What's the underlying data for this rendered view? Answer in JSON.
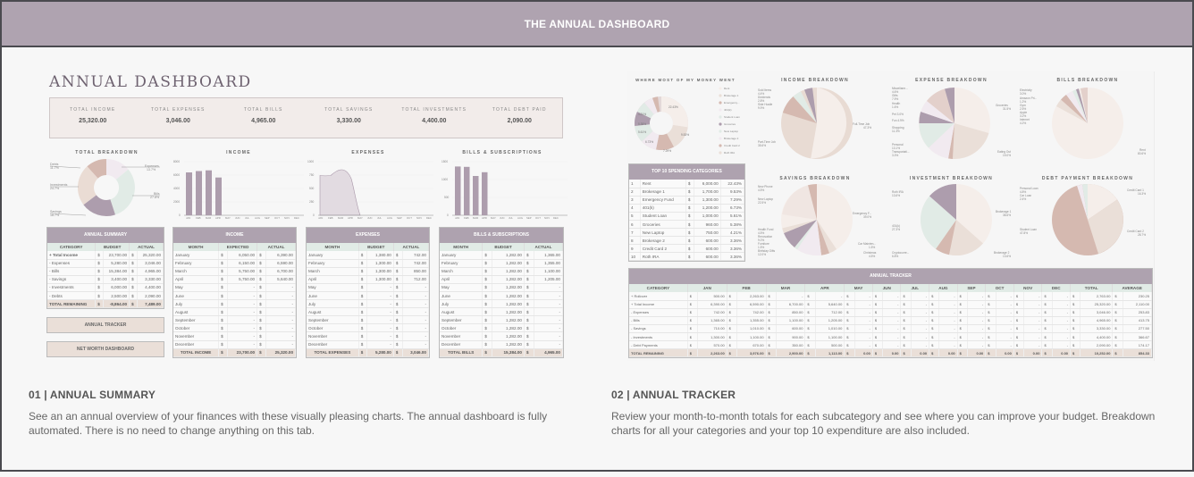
{
  "banner": {
    "title": "THE ANNUAL DASHBOARD"
  },
  "left": {
    "title": "ANNUAL DASHBOARD",
    "kpis": [
      {
        "label": "TOTAL INCOME",
        "value": "25,320.00"
      },
      {
        "label": "TOTAL EXPENSES",
        "value": "3,046.00"
      },
      {
        "label": "TOTAL BILLS",
        "value": "4,965.00"
      },
      {
        "label": "TOTAL SAVINGS",
        "value": "3,330.00"
      },
      {
        "label": "TOTAL INVESTMENTS",
        "value": "4,400.00"
      },
      {
        "label": "TOTAL DEBT PAID",
        "value": "2,090.00"
      }
    ],
    "chart_titles": {
      "breakdown": "TOTAL BREAKDOWN",
      "income": "INCOME",
      "expenses": "EXPENSES",
      "bills": "BILLS & SUBSCRIPTIONS"
    },
    "summary": {
      "title": "ANNUAL SUMMARY",
      "headers": [
        "CATEGORY",
        "BUDGET",
        "ACTUAL"
      ],
      "rows": [
        [
          "+",
          "Total Income",
          "$",
          "23,700.00",
          "$",
          "25,320.00"
        ],
        [
          "-",
          "Expenses",
          "$",
          "5,280.00",
          "$",
          "3,046.00"
        ],
        [
          "-",
          "Bills",
          "$",
          "15,384.00",
          "$",
          "4,965.00"
        ],
        [
          "-",
          "Savings",
          "$",
          "3,400.00",
          "$",
          "3,330.00"
        ],
        [
          "-",
          "Investments",
          "$",
          "6,000.00",
          "$",
          "4,400.00"
        ],
        [
          "-",
          "Debts",
          "$",
          "2,500.00",
          "$",
          "2,090.00"
        ]
      ],
      "total": [
        "TOTAL REMAINING",
        "$",
        "-8,864.00",
        "$",
        "7,489.00"
      ]
    },
    "buttons": {
      "tracker": "ANNUAL TRACKER",
      "networth": "NET WORTH DASHBOARD"
    },
    "income_table": {
      "title": "INCOME",
      "headers": [
        "MONTH",
        "EXPECTED",
        "ACTUAL"
      ],
      "rows": [
        [
          "January",
          "6,050.00",
          "6,390.00"
        ],
        [
          "February",
          "6,150.00",
          "6,590.00"
        ],
        [
          "March",
          "5,750.00",
          "6,700.00"
        ],
        [
          "April",
          "5,750.00",
          "5,640.00"
        ],
        [
          "May",
          "-",
          "-"
        ],
        [
          "June",
          "-",
          "-"
        ],
        [
          "July",
          "-",
          "-"
        ],
        [
          "August",
          "-",
          "-"
        ],
        [
          "September",
          "-",
          "-"
        ],
        [
          "October",
          "-",
          "-"
        ],
        [
          "November",
          "-",
          "-"
        ],
        [
          "December",
          "-",
          "-"
        ]
      ],
      "total": [
        "TOTAL INCOME",
        "23,700.00",
        "25,320.00"
      ]
    },
    "expenses_table": {
      "title": "EXPENSES",
      "headers": [
        "MONTH",
        "BUDGET",
        "ACTUAL"
      ],
      "rows": [
        [
          "January",
          "1,380.00",
          "742.00"
        ],
        [
          "February",
          "1,300.00",
          "742.00"
        ],
        [
          "March",
          "1,300.00",
          "850.00"
        ],
        [
          "April",
          "1,300.00",
          "712.00"
        ],
        [
          "May",
          "-",
          "-"
        ],
        [
          "June",
          "-",
          "-"
        ],
        [
          "July",
          "-",
          "-"
        ],
        [
          "August",
          "-",
          "-"
        ],
        [
          "September",
          "-",
          "-"
        ],
        [
          "October",
          "-",
          "-"
        ],
        [
          "November",
          "-",
          "-"
        ],
        [
          "December",
          "-",
          "-"
        ]
      ],
      "total": [
        "TOTAL EXPENSES",
        "5,280.00",
        "3,046.00"
      ]
    },
    "bills_table": {
      "title": "BILLS & SUBSCRIPTIONS",
      "headers": [
        "MONTH",
        "BUDGET",
        "ACTUAL"
      ],
      "rows": [
        [
          "January",
          "1,282.00",
          "1,365.00"
        ],
        [
          "February",
          "1,282.00",
          "1,355.00"
        ],
        [
          "March",
          "1,282.00",
          "1,100.00"
        ],
        [
          "April",
          "1,282.00",
          "1,205.00"
        ],
        [
          "May",
          "1,282.00",
          "-"
        ],
        [
          "June",
          "1,282.00",
          "-"
        ],
        [
          "July",
          "1,282.00",
          "-"
        ],
        [
          "August",
          "1,282.00",
          "-"
        ],
        [
          "September",
          "1,282.00",
          "-"
        ],
        [
          "October",
          "1,282.00",
          "-"
        ],
        [
          "November",
          "1,282.00",
          "-"
        ],
        [
          "December",
          "1,282.00",
          "-"
        ]
      ],
      "total": [
        "TOTAL BILLS",
        "15,384.00",
        "4,965.00"
      ]
    }
  },
  "right": {
    "chart_titles": {
      "money": "WHERE MOST OF MY MONEY WENT",
      "income": "INCOME BREAKDOWN",
      "expense": "EXPENSE BREAKDOWN",
      "bills": "BILLS BREAKDOWN",
      "savings": "SAVINGS BREAKDOWN",
      "investment": "INVESTMENT BREAKDOWN",
      "debt": "DEBT PAYMENT BREAKDOWN"
    },
    "top10": {
      "title": "TOP 10 SPENDING CATEGORIES",
      "rows": [
        [
          "1",
          "Rent",
          "6,000.00",
          "22.43%"
        ],
        [
          "2",
          "Brokerage 1",
          "1,700.00",
          "9.53%"
        ],
        [
          "3",
          "Emergency Fund",
          "1,300.00",
          "7.29%"
        ],
        [
          "4",
          "401(k)",
          "1,200.00",
          "6.73%"
        ],
        [
          "5",
          "Student Loan",
          "1,000.00",
          "5.61%"
        ],
        [
          "6",
          "Groceries",
          "960.00",
          "5.38%"
        ],
        [
          "7",
          "New Laptop",
          "750.00",
          "4.21%"
        ],
        [
          "8",
          "Brokerage 2",
          "600.00",
          "3.36%"
        ],
        [
          "9",
          "Credit Card 2",
          "600.00",
          "3.36%"
        ],
        [
          "10",
          "Roth IRA",
          "600.00",
          "3.36%"
        ]
      ]
    },
    "tracker": {
      "title": "ANNUAL TRACKER",
      "headers": [
        "CATEGORY",
        "JAN",
        "FEB",
        "MAR",
        "APR",
        "MAY",
        "JUN",
        "JUL",
        "AUG",
        "SEP",
        "OCT",
        "NOV",
        "DEC",
        "TOTAL",
        "AVERAGE"
      ],
      "rows": [
        [
          "+ Rollover",
          "500.00",
          "2,263.00",
          "-",
          "-",
          "-",
          "-",
          "-",
          "-",
          "-",
          "-",
          "-",
          "-",
          "2,763.00",
          "230.25"
        ],
        [
          "+ Total Income",
          "6,390.00",
          "6,590.00",
          "6,700.00",
          "5,640.00",
          "-",
          "-",
          "-",
          "-",
          "-",
          "-",
          "-",
          "-",
          "25,320.00",
          "2,110.00"
        ],
        [
          "- Expenses",
          "742.00",
          "742.00",
          "850.00",
          "712.00",
          "-",
          "-",
          "-",
          "-",
          "-",
          "-",
          "-",
          "-",
          "3,046.00",
          "253.83"
        ],
        [
          "- Bills",
          "1,365.00",
          "1,355.00",
          "1,100.00",
          "1,205.00",
          "-",
          "-",
          "-",
          "-",
          "-",
          "-",
          "-",
          "-",
          "4,965.00",
          "413.75"
        ],
        [
          "- Savings",
          "710.00",
          "1,010.00",
          "600.00",
          "1,010.00",
          "-",
          "-",
          "-",
          "-",
          "-",
          "-",
          "-",
          "-",
          "3,330.00",
          "277.50"
        ],
        [
          "- Investments",
          "1,300.00",
          "1,100.00",
          "900.00",
          "1,100.00",
          "-",
          "-",
          "-",
          "-",
          "-",
          "-",
          "-",
          "-",
          "4,400.00",
          "366.67"
        ],
        [
          "- Debt Payments",
          "570.00",
          "670.00",
          "350.00",
          "500.00",
          "-",
          "-",
          "-",
          "-",
          "-",
          "-",
          "-",
          "-",
          "2,090.00",
          "174.17"
        ]
      ],
      "total": [
        "TOTAL REMAINING",
        "2,263.00",
        "3,976.00",
        "2,900.00",
        "1,113.00",
        "0.00",
        "0.00",
        "0.00",
        "0.00",
        "0.00",
        "0.00",
        "0.00",
        "0.00",
        "10,252.00",
        "854.33"
      ]
    }
  },
  "sections": [
    {
      "heading": "01 | ANNUAL SUMMARY",
      "body": "See an an annual overview of your finances with these visually pleasing charts. The annual dashboard is fully automated. There is no need to change anything on this tab."
    },
    {
      "heading": "02 | ANNUAL TRACKER",
      "body": "Review your month-to-month totals for each subcategory and see where you can improve your budget. Breakdown charts for all your categories and your top 10 expenditure are also included."
    }
  ],
  "colors": {
    "banner": "#afa3b0",
    "mauve": "#aea2af",
    "sage": "#e1ebe6",
    "blush": "#eadfd8",
    "rose": "#d6bcb4",
    "cream": "#f5eeea"
  },
  "chart_data": [
    {
      "type": "pie",
      "title": "TOTAL BREAKDOWN",
      "categories": [
        "Expenses",
        "Bills",
        "Savings",
        "Investments",
        "Debts"
      ],
      "values": [
        13.7,
        27.8,
        18.7,
        24.7,
        11.7
      ]
    },
    {
      "type": "bar",
      "title": "INCOME",
      "categories": [
        "JAN",
        "FEB",
        "MAR",
        "APR",
        "MAY",
        "JUN",
        "JUL",
        "AUG",
        "SEP",
        "OCT",
        "NOV",
        "DEC"
      ],
      "values": [
        6390,
        6590,
        6700,
        5640,
        0,
        0,
        0,
        0,
        0,
        0,
        0,
        0
      ],
      "ylim": [
        0,
        8000
      ],
      "yticks": [
        0,
        2000,
        4000,
        6000,
        8000
      ]
    },
    {
      "type": "area",
      "title": "EXPENSES",
      "categories": [
        "JAN",
        "FEB",
        "MAR",
        "APR",
        "MAY",
        "JUN",
        "JUL",
        "AUG",
        "SEP",
        "OCT",
        "NOV",
        "DEC"
      ],
      "values": [
        742,
        742,
        850,
        712,
        0,
        0,
        0,
        0,
        0,
        0,
        0,
        0
      ],
      "ylim": [
        0,
        1000
      ],
      "yticks": [
        0,
        250,
        500,
        750,
        1000
      ]
    },
    {
      "type": "bar",
      "title": "BILLS & SUBSCRIPTIONS",
      "categories": [
        "JAN",
        "FEB",
        "MAR",
        "APR",
        "MAY",
        "JUN",
        "JUL",
        "AUG",
        "SEP",
        "OCT",
        "NOV",
        "DEC"
      ],
      "values": [
        1365,
        1355,
        1100,
        1205,
        0,
        0,
        0,
        0,
        0,
        0,
        0,
        0
      ],
      "ylim": [
        0,
        1500
      ],
      "yticks": [
        0,
        500,
        1000,
        1500
      ]
    },
    {
      "type": "pie",
      "title": "WHERE MOST OF MY MONEY WENT",
      "categories": [
        "Rent",
        "Brokerage 1",
        "Emergency Fund",
        "401(k)",
        "Student Loan",
        "Groceries",
        "New Laptop",
        "Brokerage 2",
        "Credit Card 2",
        "Roth IRA"
      ],
      "values": [
        22.43,
        9.53,
        7.29,
        6.73,
        5.61,
        5.38,
        4.21,
        3.36,
        3.36,
        3.36
      ]
    },
    {
      "type": "pie",
      "title": "INCOME BREAKDOWN",
      "categories": [
        "Full Time Job",
        "Part Time Job",
        "Side Hustle",
        "Dividends",
        "Sold Items"
      ],
      "values": [
        47.3,
        35.6,
        9.9,
        2.8,
        4.4
      ]
    },
    {
      "type": "pie",
      "title": "EXPENSE BREAKDOWN",
      "categories": [
        "Groceries",
        "Eating Out",
        "Transportation",
        "Personal",
        "Shopping",
        "Fun",
        "Pet",
        "Health",
        "Gifts",
        "Miscellaneous"
      ],
      "values": [
        31.5,
        19.0,
        3.3,
        13.1,
        11.3,
        4.9,
        3.0,
        1.6,
        7.9,
        4.6
      ]
    },
    {
      "type": "pie",
      "title": "BILLS BREAKDOWN",
      "categories": [
        "Rent",
        "Internet",
        "Apple",
        "Gym",
        "Amazon Prime",
        "Electricity"
      ],
      "values": [
        80.6,
        4.2,
        3.2,
        2.5,
        1.2,
        3.0
      ]
    },
    {
      "type": "pie",
      "title": "SAVINGS BREAKDOWN",
      "categories": [
        "Emergency Fund",
        "Car Maintenance",
        "Christmas",
        "Birthday Gifts",
        "Furniture",
        "Renovation",
        "Health Fund",
        "New Laptop",
        "New Phone"
      ],
      "values": [
        39.0,
        1.5,
        4.5,
        12.0,
        1.5,
        9.0,
        4.5,
        22.5,
        4.5
      ]
    },
    {
      "type": "pie",
      "title": "INVESTMENT BREAKDOWN",
      "categories": [
        "Brokerage 1",
        "Brokerage 2",
        "Cryptocurrency",
        "401(k)",
        "Roth IRA"
      ],
      "values": [
        38.6,
        13.6,
        6.8,
        27.3,
        13.6
      ]
    },
    {
      "type": "pie",
      "title": "DEBT PAYMENT BREAKDOWN",
      "categories": [
        "Credit Card 1",
        "Credit Card 2",
        "Student Loan",
        "Car Loan",
        "Personal Loan"
      ],
      "values": [
        16.3,
        28.7,
        47.8,
        2.4,
        4.8
      ]
    }
  ]
}
